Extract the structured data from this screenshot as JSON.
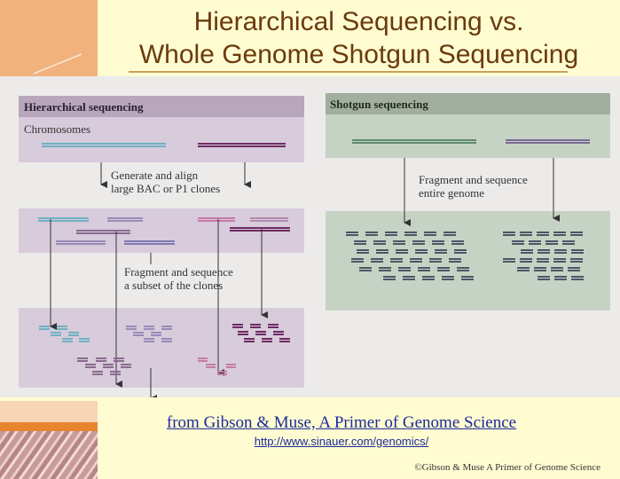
{
  "slide": {
    "title_line1": "Hierarchical Sequencing vs.",
    "title_line2": "Whole Genome Shotgun Sequencing",
    "source": "from Gibson & Muse, A Primer of Genome Science",
    "url": "http://www.sinauer.com/genomics/",
    "copyright": "©Gibson & Muse A Primer of Genome Science"
  },
  "hierarchical": {
    "header": "Hierarchical sequencing",
    "chromosomes_label": "Chromosomes",
    "step1_line1": "Generate and align",
    "step1_line2": "large BAC or P1 clones",
    "step2_line1": "Fragment and sequence",
    "step2_line2": "a subset of the clones"
  },
  "shotgun": {
    "header": "Shotgun sequencing",
    "step1_line1": "Fragment and sequence",
    "step1_line2": "entire genome"
  },
  "colors": {
    "background": "#fffcd2",
    "title": "#6b3a0c",
    "link": "#1c2b9a",
    "hier_header": "#b8a6bc",
    "hier_panel": "#d8cbdb",
    "shotgun_header": "#a2af9f",
    "shotgun_panel": "#c6d3c4",
    "cyan": "#6fb2c2",
    "purple": "#6e2a62",
    "lavender": "#9a8ab8",
    "pink": "#c77aa8",
    "green": "#5f8a6c",
    "slate": "#4d5566"
  }
}
